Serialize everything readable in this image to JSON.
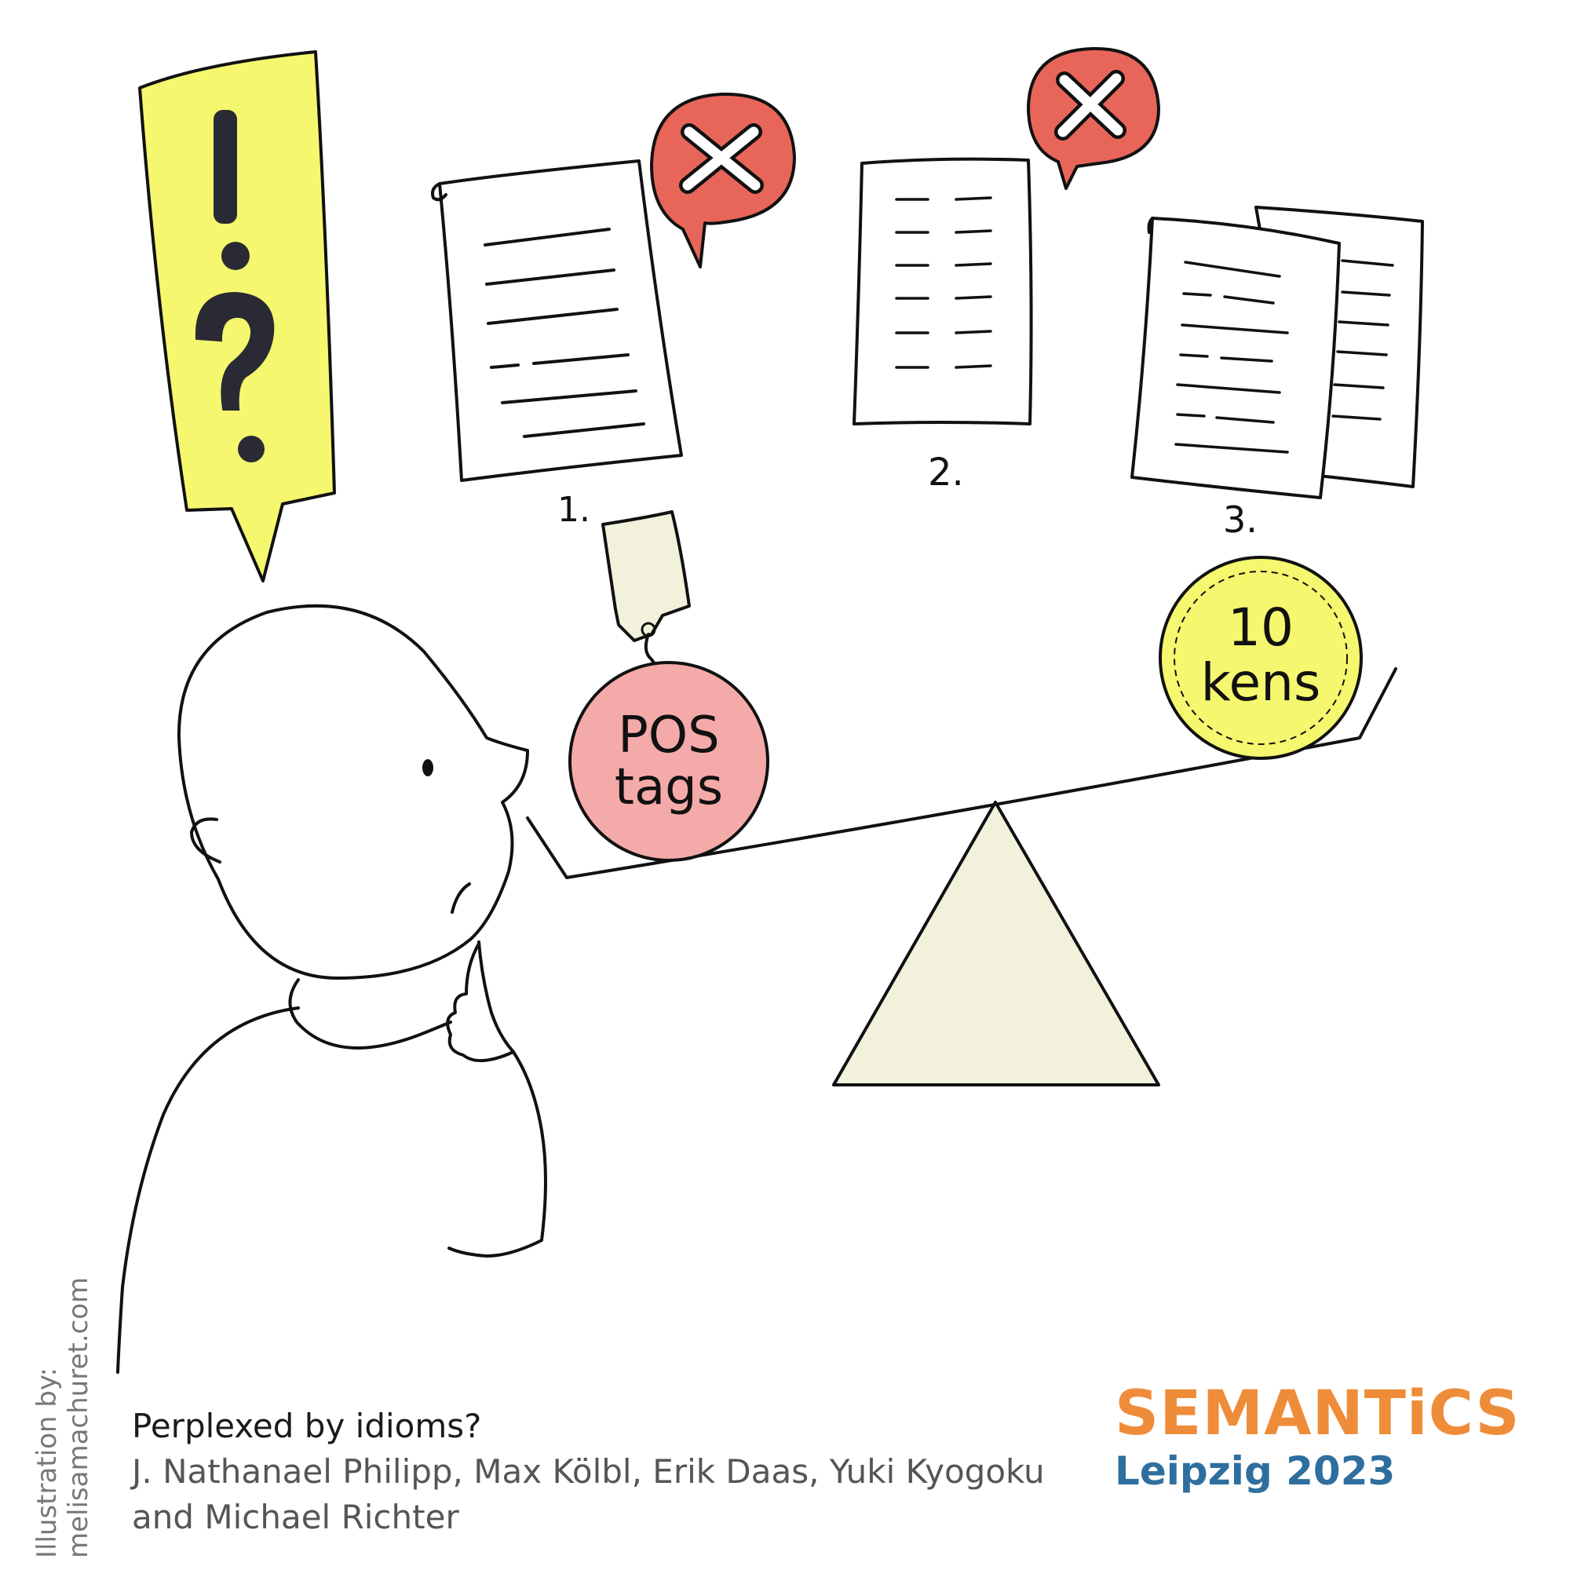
{
  "caption": {
    "title": "Perplexed by idioms?",
    "authors": "J. Nathanael Philipp, Max Kölbl, Erik Daas, Yuki Kyogoku and Michael Richter"
  },
  "credit": {
    "line1": "Illustration by:",
    "line2": "melisamachuret.com"
  },
  "logo": {
    "brand": "SEMANTiCS",
    "place": "Leipzig 2023"
  },
  "documents": [
    {
      "number": "1."
    },
    {
      "number": "2."
    },
    {
      "number": "3."
    }
  ],
  "weights": {
    "left_label_line1": "POS",
    "left_label_line2": "tags",
    "right_label_line1": "10",
    "right_label_line2": "kens"
  },
  "speech_bubble": {
    "exclaim": "!",
    "question": "?"
  },
  "colors": {
    "yellow": "#f5f76e",
    "red_bubble": "#e8655a",
    "pink_weight": "#f5aaaa",
    "cream": "#f1f1dc",
    "logo_orange": "#ef8c3a",
    "logo_blue": "#2f6f9f"
  },
  "icons": [
    "exclamation-question-bubble-icon",
    "reject-cross-icon",
    "document-icon",
    "price-tag-icon",
    "balance-scale-icon"
  ]
}
